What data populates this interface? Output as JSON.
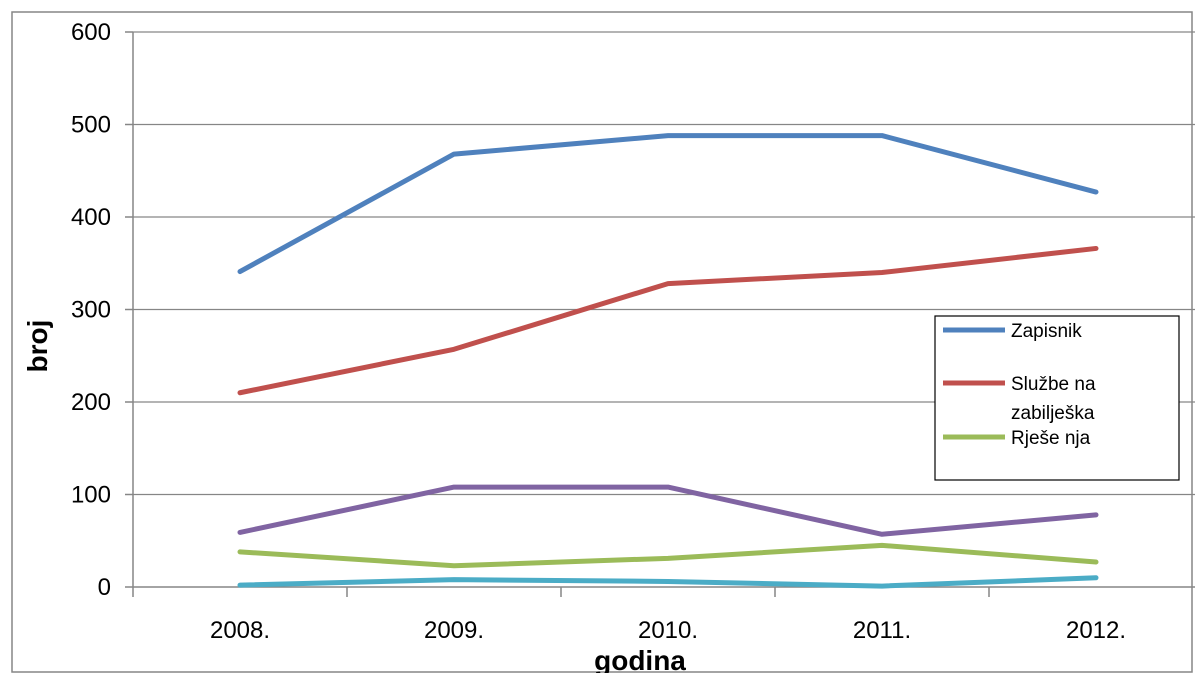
{
  "chart_data": {
    "type": "line",
    "title": "",
    "xlabel": "godina",
    "ylabel": "broj",
    "ylim": [
      0,
      600
    ],
    "yticks": [
      0,
      100,
      200,
      300,
      400,
      500,
      600
    ],
    "categories": [
      "2008.",
      "2009.",
      "2010.",
      "2011.",
      "2012."
    ],
    "grid": "horizontal",
    "legend_position": "right",
    "series": [
      {
        "name": "Zapisnik",
        "color": "#4F81BD",
        "values": [
          341,
          468,
          488,
          488,
          427
        ],
        "in_legend": true
      },
      {
        "name": "Službena zabilješka",
        "legend_lines": [
          "Službe na",
          "zabilješka"
        ],
        "color": "#C0504D",
        "values": [
          210,
          257,
          328,
          340,
          366
        ],
        "in_legend": true
      },
      {
        "name": "Rješenja",
        "legend_lines": [
          "Rješe nja"
        ],
        "color": "#9BBB59",
        "values": [
          38,
          23,
          31,
          45,
          27
        ],
        "in_legend": true
      },
      {
        "color": "#8064A2",
        "values": [
          59,
          108,
          108,
          57,
          78
        ],
        "in_legend": false
      },
      {
        "color": "#4BACC6",
        "values": [
          2,
          8,
          6,
          1,
          10
        ],
        "in_legend": false
      }
    ]
  }
}
